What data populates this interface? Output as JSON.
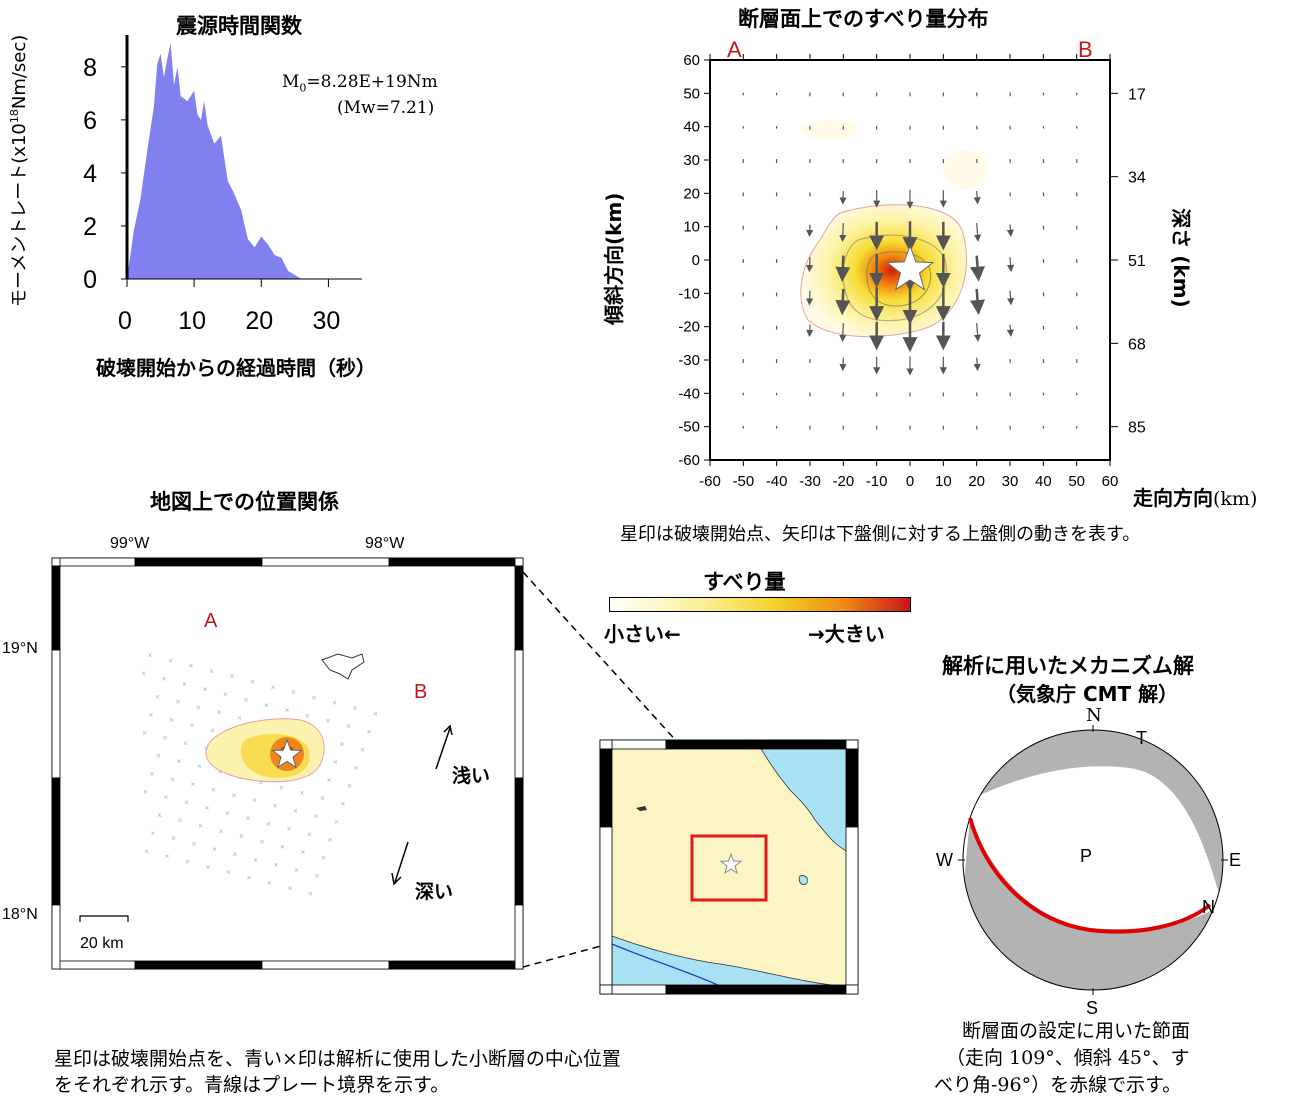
{
  "stf": {
    "title": "震源時間関数",
    "ylabel": "モーメントレート(x10",
    "ylabel_sup": "18",
    "ylabel_tail": "Nm/sec)",
    "xlabel": "破壊開始からの経過時間（秒）",
    "m0_text": "M",
    "m0_sub": "0",
    "m0_value": "=8.28E+19Nm",
    "mw_text": "(Mw=7.21)",
    "fill_color": "#8080f0",
    "chart_data": {
      "type": "area",
      "x": [
        0,
        1,
        2,
        3,
        4,
        4.5,
        5,
        5.5,
        6,
        6.5,
        7,
        7.5,
        8,
        9,
        10,
        10.5,
        11,
        11.5,
        12,
        13,
        14,
        15,
        16,
        17,
        18,
        19,
        20,
        21,
        22,
        23,
        24,
        25,
        26
      ],
      "y": [
        0,
        1.8,
        3.0,
        4.8,
        6.5,
        8.1,
        8.5,
        7.6,
        8.3,
        8.9,
        7.3,
        8.0,
        6.9,
        6.7,
        7.1,
        6.2,
        6.0,
        6.7,
        5.8,
        5.1,
        5.4,
        3.7,
        3.2,
        2.6,
        1.5,
        1.2,
        1.6,
        1.3,
        0.9,
        0.8,
        0.3,
        0.15,
        0
      ],
      "xticks": [
        "0",
        "10",
        "20",
        "30"
      ],
      "yticks": [
        "0",
        "2",
        "4",
        "6",
        "8"
      ],
      "xlim": [
        0,
        35
      ],
      "ylim": [
        0,
        9.2
      ]
    }
  },
  "slip": {
    "title": "断層面上でのすべり量分布",
    "ylabel": "傾斜方向(km)",
    "xlabel": "走向方向",
    "xlabel_unit": "(km)",
    "right_label": "深さ (km)",
    "label_a": "A",
    "label_b": "B",
    "xticks": [
      "-60",
      "-50",
      "-40",
      "-30",
      "-20",
      "-10",
      "0",
      "10",
      "20",
      "30",
      "40",
      "50",
      "60"
    ],
    "yticks": [
      "60",
      "50",
      "40",
      "30",
      "20",
      "10",
      "0",
      "-10",
      "-20",
      "-30",
      "-40",
      "-50",
      "-60"
    ],
    "depth_ticks": [
      "17",
      "34",
      "51",
      "68",
      "85"
    ],
    "caption": "星印は破壊開始点、矢印は下盤側に対する上盤側の動きを表す。"
  },
  "colorbar": {
    "title": "すべり量",
    "left_label": "小さい←",
    "right_label": "→大きい"
  },
  "map": {
    "title": "地図上での位置関係",
    "lon_labels": [
      "99°W",
      "98°W"
    ],
    "lat_labels": [
      "19°N",
      "18°N"
    ],
    "label_a": "A",
    "label_b": "B",
    "shallow": "浅い",
    "deep": "深い",
    "scale": "20 km",
    "caption_line1": "星印は破壊開始点を、青い×印は解析に使用した小断層の中心位置",
    "caption_line2": "をそれぞれ示す。青線はプレート境界を示す。",
    "colors": {
      "land": "#fbf4c4",
      "sea": "#a9e1f5",
      "grid_marks": "#9db2ec",
      "box": "#e21818"
    }
  },
  "mech": {
    "title": "解析に用いたメカニズム解",
    "subtitle": "（気象庁 CMT 解）",
    "n": "N",
    "s": "S",
    "e": "E",
    "w": "W",
    "t": "T",
    "p": "P",
    "n2": "N",
    "caption_line1": "断層面の設定に用いた節面",
    "caption_line2": "（走向 109°、傾斜 45°、す",
    "caption_line3": "べり角-96°）を赤線で示す。",
    "colors": {
      "shade": "#b3b3b3",
      "plane": "#e10000"
    }
  }
}
